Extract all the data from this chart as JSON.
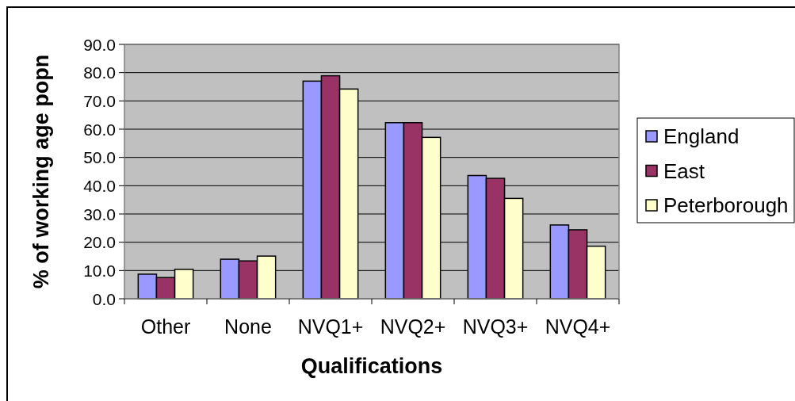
{
  "chart_data": {
    "type": "bar",
    "xlabel": "Qualifications",
    "ylabel": "% of working age popn",
    "categories": [
      "Other",
      "None",
      "NVQ1+",
      "NVQ2+",
      "NVQ3+",
      "NVQ4+"
    ],
    "series": [
      {
        "name": "England",
        "color": "#9999ff",
        "values": [
          8.7,
          14.0,
          77.0,
          62.3,
          43.6,
          26.1
        ]
      },
      {
        "name": "East",
        "color": "#993366",
        "values": [
          7.5,
          13.4,
          78.9,
          62.3,
          42.6,
          24.4
        ]
      },
      {
        "name": "Peterborough",
        "color": "#ffffcc",
        "values": [
          10.4,
          15.1,
          74.2,
          57.1,
          35.5,
          18.6
        ]
      }
    ],
    "ylim": [
      0,
      90
    ],
    "yticks": [
      {
        "value": 0,
        "label": "0.0"
      },
      {
        "value": 10,
        "label": "10.0"
      },
      {
        "value": 20,
        "label": "20.0"
      },
      {
        "value": 30,
        "label": "30.0"
      },
      {
        "value": 40,
        "label": "40.0"
      },
      {
        "value": 50,
        "label": "50.0"
      },
      {
        "value": 60,
        "label": "60.0"
      },
      {
        "value": 70,
        "label": "70.0"
      },
      {
        "value": 80,
        "label": "80.0"
      },
      {
        "value": 90,
        "label": "90.0"
      }
    ],
    "grid": "y",
    "legend": "right"
  }
}
